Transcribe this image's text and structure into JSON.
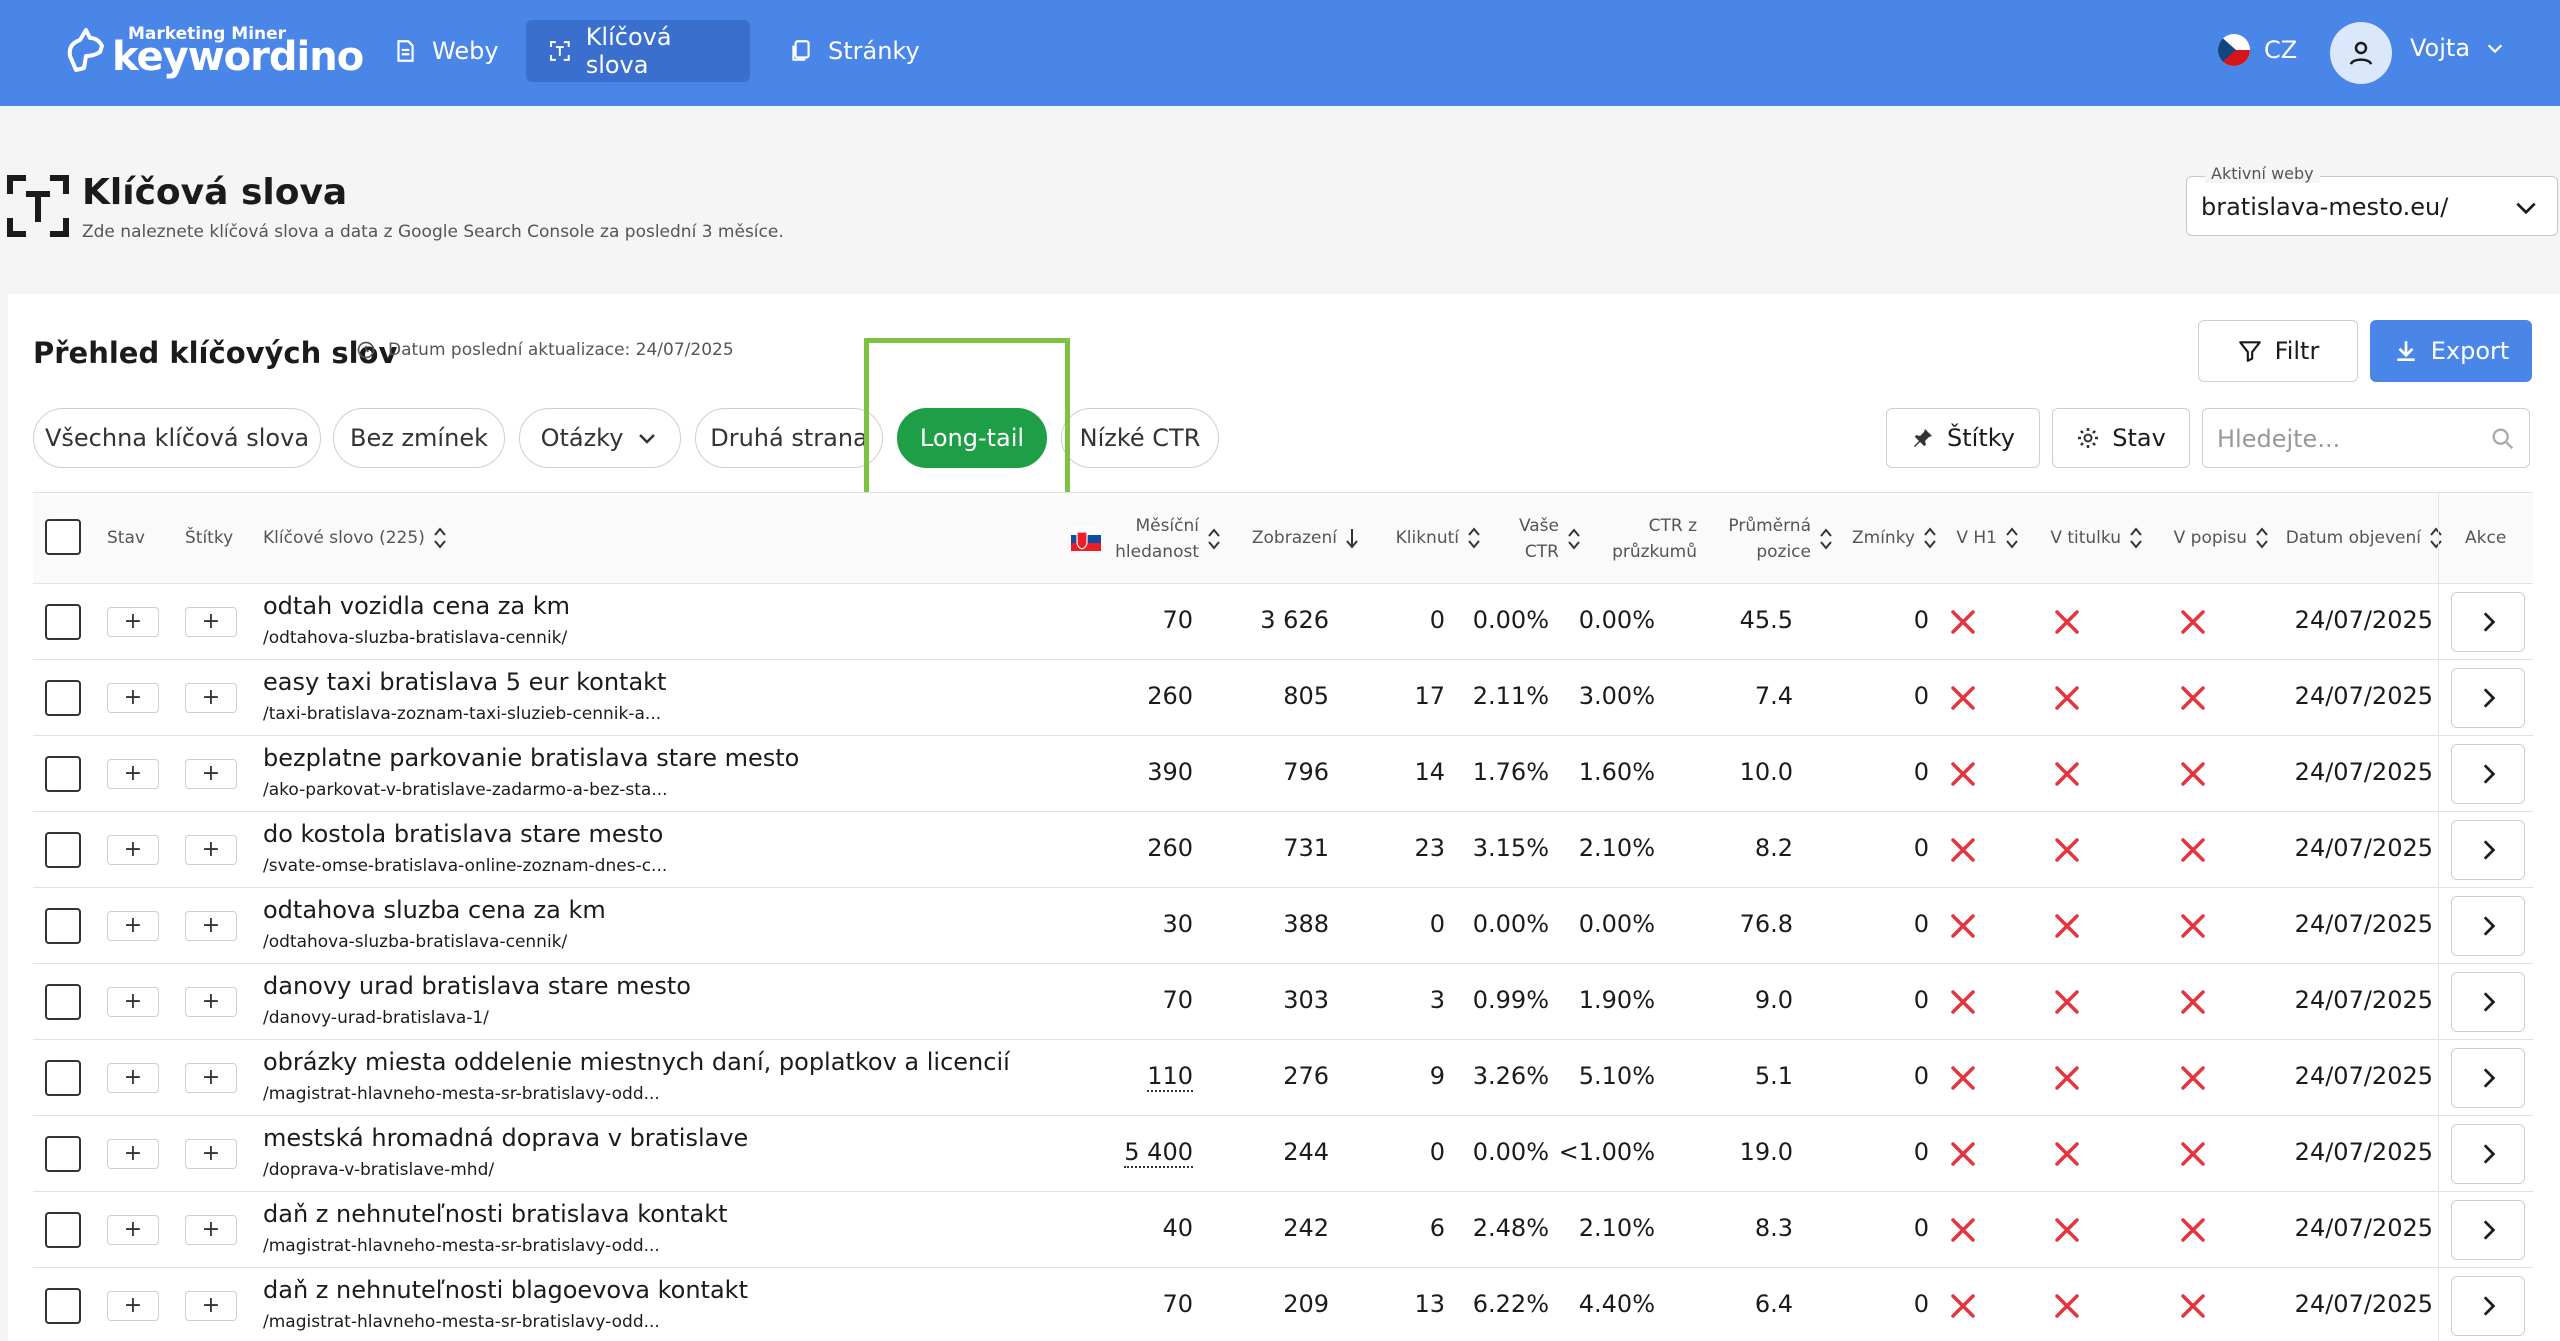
{
  "brand": {
    "small": "Marketing Miner",
    "name": "keywordino"
  },
  "nav": [
    {
      "label": "Weby",
      "icon": "document-icon"
    },
    {
      "label": "Klíčová slova",
      "icon": "keyword-icon"
    },
    {
      "label": "Stránky",
      "icon": "pages-icon"
    }
  ],
  "lang": "CZ",
  "user": "Vojta",
  "page": {
    "title": "Klíčová slova",
    "subtitle": "Zde naleznete klíčová slova a data z Google Search Console za poslední 3 měsíce."
  },
  "active_web": {
    "label": "Aktivní weby",
    "value": "bratislava-mesto.eu/"
  },
  "card": {
    "title": "Přehled klíčových slov",
    "updated": "Datum poslední aktualizace: 24/07/2025"
  },
  "buttons": {
    "filter": "Filtr",
    "export": "Export",
    "tags": "Štítky",
    "state": "Stav"
  },
  "search": {
    "placeholder": "Hledejte..."
  },
  "tabs": [
    "Všechna klíčová slova",
    "Bez zmínek",
    "Otázky",
    "Druhá strana",
    "Long-tail",
    "Nízké CTR"
  ],
  "active_tab": "Long-tail",
  "columns": {
    "state": "Stav",
    "tags": "Štítky",
    "keyword": "Klíčové slovo (225)",
    "monthly": "Měsíční hledanost",
    "impressions": "Zobrazení",
    "clicks": "Kliknutí",
    "ctr": "Vaše CTR",
    "ctr_survey": "CTR z průzkumů",
    "avg_pos": "Průměrná pozice",
    "mentions": "Zmínky",
    "h1": "V H1",
    "title": "V titulku",
    "desc": "V popisu",
    "found": "Datum objevení",
    "actions": "Akce"
  },
  "rows": [
    {
      "keyword": "odtah vozidla cena za km",
      "url": "/odtahova-sluzba-bratislava-cennik/",
      "monthly": "70",
      "impressions": "3 626",
      "clicks": "0",
      "ctr": "0.00%",
      "ctr_survey": "0.00%",
      "avg_pos": "45.5",
      "mentions": "0",
      "date": "24/07/2025"
    },
    {
      "keyword": "easy taxi bratislava 5 eur kontakt",
      "url": "/taxi-bratislava-zoznam-taxi-sluzieb-cennik-a...",
      "monthly": "260",
      "impressions": "805",
      "clicks": "17",
      "ctr": "2.11%",
      "ctr_survey": "3.00%",
      "avg_pos": "7.4",
      "mentions": "0",
      "date": "24/07/2025"
    },
    {
      "keyword": "bezplatne parkovanie bratislava stare mesto",
      "url": "/ako-parkovat-v-bratislave-zadarmo-a-bez-sta...",
      "monthly": "390",
      "impressions": "796",
      "clicks": "14",
      "ctr": "1.76%",
      "ctr_survey": "1.60%",
      "avg_pos": "10.0",
      "mentions": "0",
      "date": "24/07/2025"
    },
    {
      "keyword": "do kostola bratislava stare mesto",
      "url": "/svate-omse-bratislava-online-zoznam-dnes-c...",
      "monthly": "260",
      "impressions": "731",
      "clicks": "23",
      "ctr": "3.15%",
      "ctr_survey": "2.10%",
      "avg_pos": "8.2",
      "mentions": "0",
      "date": "24/07/2025"
    },
    {
      "keyword": "odtahova sluzba cena za km",
      "url": "/odtahova-sluzba-bratislava-cennik/",
      "monthly": "30",
      "impressions": "388",
      "clicks": "0",
      "ctr": "0.00%",
      "ctr_survey": "0.00%",
      "avg_pos": "76.8",
      "mentions": "0",
      "date": "24/07/2025"
    },
    {
      "keyword": "danovy urad bratislava stare mesto",
      "url": "/danovy-urad-bratislava-1/",
      "monthly": "70",
      "impressions": "303",
      "clicks": "3",
      "ctr": "0.99%",
      "ctr_survey": "1.90%",
      "avg_pos": "9.0",
      "mentions": "0",
      "date": "24/07/2025"
    },
    {
      "keyword": "obrázky miesta oddelenie miestnych daní, poplatkov a licencií",
      "url": "/magistrat-hlavneho-mesta-sr-bratislavy-odd...",
      "monthly": "110",
      "impressions": "276",
      "clicks": "9",
      "ctr": "3.26%",
      "ctr_survey": "5.10%",
      "avg_pos": "5.1",
      "mentions": "0",
      "date": "24/07/2025",
      "dotted": true
    },
    {
      "keyword": "mestská hromadná doprava v bratislave",
      "url": "/doprava-v-bratislave-mhd/",
      "monthly": "5 400",
      "impressions": "244",
      "clicks": "0",
      "ctr": "0.00%",
      "ctr_survey": "<1.00%",
      "avg_pos": "19.0",
      "mentions": "0",
      "date": "24/07/2025",
      "dotted": true
    },
    {
      "keyword": "daň z nehnuteľnosti bratislava kontakt",
      "url": "/magistrat-hlavneho-mesta-sr-bratislavy-odd...",
      "monthly": "40",
      "impressions": "242",
      "clicks": "6",
      "ctr": "2.48%",
      "ctr_survey": "2.10%",
      "avg_pos": "8.3",
      "mentions": "0",
      "date": "24/07/2025"
    },
    {
      "keyword": "daň z nehnuteľnosti blagoevova kontakt",
      "url": "/magistrat-hlavneho-mesta-sr-bratislavy-odd...",
      "monthly": "70",
      "impressions": "209",
      "clicks": "13",
      "ctr": "6.22%",
      "ctr_survey": "4.40%",
      "avg_pos": "6.4",
      "mentions": "0",
      "date": "24/07/2025"
    }
  ],
  "colors": {
    "topbar": "#4a86e8",
    "active_tab": "#1e9e47",
    "cross": "#e5343d",
    "highlight": "#7dc242"
  }
}
